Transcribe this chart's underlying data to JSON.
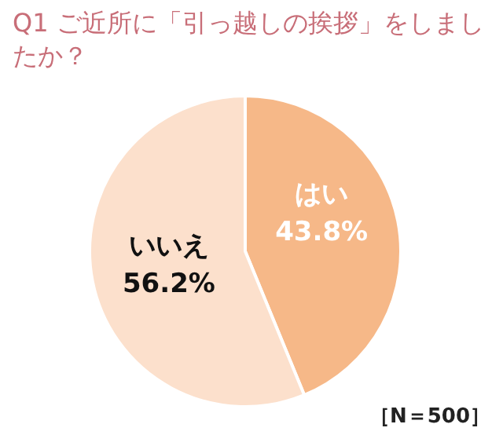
{
  "chart_data": {
    "type": "pie",
    "title": "Q1 ご近所に「引っ越しの挨拶」をしましたか？",
    "categories": [
      "はい",
      "いいえ"
    ],
    "values": [
      43.8,
      56.2
    ],
    "value_labels": [
      "43.8%",
      "56.2%"
    ],
    "colors": [
      "#f6b888",
      "#fce0cc"
    ],
    "annotations": [
      "［N＝500］"
    ]
  }
}
